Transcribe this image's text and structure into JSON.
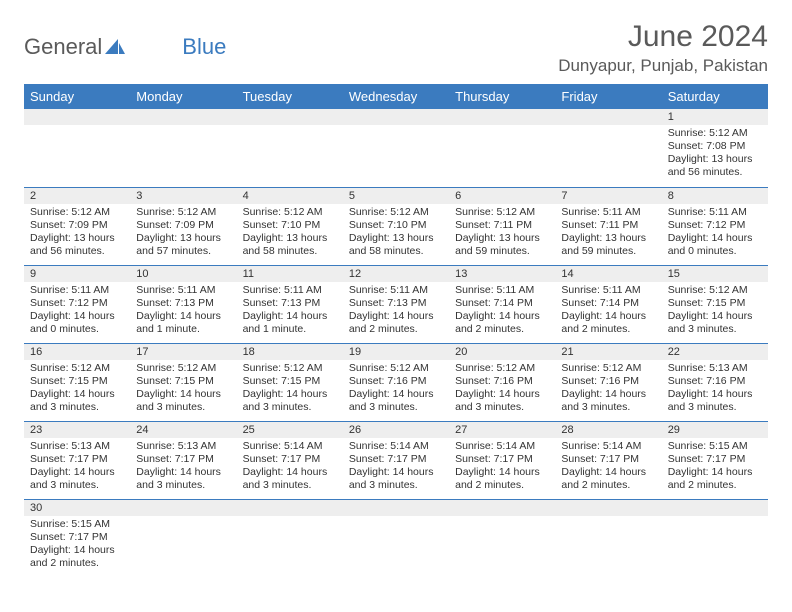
{
  "brand": {
    "name1": "General",
    "name2": "Blue"
  },
  "title": "June 2024",
  "location": "Dunyapur, Punjab, Pakistan",
  "colors": {
    "header_bg": "#3b7bbf",
    "header_text": "#ffffff",
    "daynum_bg": "#eeeeee",
    "text": "#333333",
    "brand_gray": "#5a5a5a",
    "brand_blue": "#3b7bbf",
    "row_divider": "#3b7bbf"
  },
  "weekdays": [
    "Sunday",
    "Monday",
    "Tuesday",
    "Wednesday",
    "Thursday",
    "Friday",
    "Saturday"
  ],
  "weeks": [
    [
      {
        "n": "",
        "lines": []
      },
      {
        "n": "",
        "lines": []
      },
      {
        "n": "",
        "lines": []
      },
      {
        "n": "",
        "lines": []
      },
      {
        "n": "",
        "lines": []
      },
      {
        "n": "",
        "lines": []
      },
      {
        "n": "1",
        "lines": [
          "Sunrise: 5:12 AM",
          "Sunset: 7:08 PM",
          "Daylight: 13 hours",
          "and 56 minutes."
        ]
      }
    ],
    [
      {
        "n": "2",
        "lines": [
          "Sunrise: 5:12 AM",
          "Sunset: 7:09 PM",
          "Daylight: 13 hours",
          "and 56 minutes."
        ]
      },
      {
        "n": "3",
        "lines": [
          "Sunrise: 5:12 AM",
          "Sunset: 7:09 PM",
          "Daylight: 13 hours",
          "and 57 minutes."
        ]
      },
      {
        "n": "4",
        "lines": [
          "Sunrise: 5:12 AM",
          "Sunset: 7:10 PM",
          "Daylight: 13 hours",
          "and 58 minutes."
        ]
      },
      {
        "n": "5",
        "lines": [
          "Sunrise: 5:12 AM",
          "Sunset: 7:10 PM",
          "Daylight: 13 hours",
          "and 58 minutes."
        ]
      },
      {
        "n": "6",
        "lines": [
          "Sunrise: 5:12 AM",
          "Sunset: 7:11 PM",
          "Daylight: 13 hours",
          "and 59 minutes."
        ]
      },
      {
        "n": "7",
        "lines": [
          "Sunrise: 5:11 AM",
          "Sunset: 7:11 PM",
          "Daylight: 13 hours",
          "and 59 minutes."
        ]
      },
      {
        "n": "8",
        "lines": [
          "Sunrise: 5:11 AM",
          "Sunset: 7:12 PM",
          "Daylight: 14 hours",
          "and 0 minutes."
        ]
      }
    ],
    [
      {
        "n": "9",
        "lines": [
          "Sunrise: 5:11 AM",
          "Sunset: 7:12 PM",
          "Daylight: 14 hours",
          "and 0 minutes."
        ]
      },
      {
        "n": "10",
        "lines": [
          "Sunrise: 5:11 AM",
          "Sunset: 7:13 PM",
          "Daylight: 14 hours",
          "and 1 minute."
        ]
      },
      {
        "n": "11",
        "lines": [
          "Sunrise: 5:11 AM",
          "Sunset: 7:13 PM",
          "Daylight: 14 hours",
          "and 1 minute."
        ]
      },
      {
        "n": "12",
        "lines": [
          "Sunrise: 5:11 AM",
          "Sunset: 7:13 PM",
          "Daylight: 14 hours",
          "and 2 minutes."
        ]
      },
      {
        "n": "13",
        "lines": [
          "Sunrise: 5:11 AM",
          "Sunset: 7:14 PM",
          "Daylight: 14 hours",
          "and 2 minutes."
        ]
      },
      {
        "n": "14",
        "lines": [
          "Sunrise: 5:11 AM",
          "Sunset: 7:14 PM",
          "Daylight: 14 hours",
          "and 2 minutes."
        ]
      },
      {
        "n": "15",
        "lines": [
          "Sunrise: 5:12 AM",
          "Sunset: 7:15 PM",
          "Daylight: 14 hours",
          "and 3 minutes."
        ]
      }
    ],
    [
      {
        "n": "16",
        "lines": [
          "Sunrise: 5:12 AM",
          "Sunset: 7:15 PM",
          "Daylight: 14 hours",
          "and 3 minutes."
        ]
      },
      {
        "n": "17",
        "lines": [
          "Sunrise: 5:12 AM",
          "Sunset: 7:15 PM",
          "Daylight: 14 hours",
          "and 3 minutes."
        ]
      },
      {
        "n": "18",
        "lines": [
          "Sunrise: 5:12 AM",
          "Sunset: 7:15 PM",
          "Daylight: 14 hours",
          "and 3 minutes."
        ]
      },
      {
        "n": "19",
        "lines": [
          "Sunrise: 5:12 AM",
          "Sunset: 7:16 PM",
          "Daylight: 14 hours",
          "and 3 minutes."
        ]
      },
      {
        "n": "20",
        "lines": [
          "Sunrise: 5:12 AM",
          "Sunset: 7:16 PM",
          "Daylight: 14 hours",
          "and 3 minutes."
        ]
      },
      {
        "n": "21",
        "lines": [
          "Sunrise: 5:12 AM",
          "Sunset: 7:16 PM",
          "Daylight: 14 hours",
          "and 3 minutes."
        ]
      },
      {
        "n": "22",
        "lines": [
          "Sunrise: 5:13 AM",
          "Sunset: 7:16 PM",
          "Daylight: 14 hours",
          "and 3 minutes."
        ]
      }
    ],
    [
      {
        "n": "23",
        "lines": [
          "Sunrise: 5:13 AM",
          "Sunset: 7:17 PM",
          "Daylight: 14 hours",
          "and 3 minutes."
        ]
      },
      {
        "n": "24",
        "lines": [
          "Sunrise: 5:13 AM",
          "Sunset: 7:17 PM",
          "Daylight: 14 hours",
          "and 3 minutes."
        ]
      },
      {
        "n": "25",
        "lines": [
          "Sunrise: 5:14 AM",
          "Sunset: 7:17 PM",
          "Daylight: 14 hours",
          "and 3 minutes."
        ]
      },
      {
        "n": "26",
        "lines": [
          "Sunrise: 5:14 AM",
          "Sunset: 7:17 PM",
          "Daylight: 14 hours",
          "and 3 minutes."
        ]
      },
      {
        "n": "27",
        "lines": [
          "Sunrise: 5:14 AM",
          "Sunset: 7:17 PM",
          "Daylight: 14 hours",
          "and 2 minutes."
        ]
      },
      {
        "n": "28",
        "lines": [
          "Sunrise: 5:14 AM",
          "Sunset: 7:17 PM",
          "Daylight: 14 hours",
          "and 2 minutes."
        ]
      },
      {
        "n": "29",
        "lines": [
          "Sunrise: 5:15 AM",
          "Sunset: 7:17 PM",
          "Daylight: 14 hours",
          "and 2 minutes."
        ]
      }
    ],
    [
      {
        "n": "30",
        "lines": [
          "Sunrise: 5:15 AM",
          "Sunset: 7:17 PM",
          "Daylight: 14 hours",
          "and 2 minutes."
        ]
      },
      {
        "n": "",
        "lines": []
      },
      {
        "n": "",
        "lines": []
      },
      {
        "n": "",
        "lines": []
      },
      {
        "n": "",
        "lines": []
      },
      {
        "n": "",
        "lines": []
      },
      {
        "n": "",
        "lines": []
      }
    ]
  ]
}
